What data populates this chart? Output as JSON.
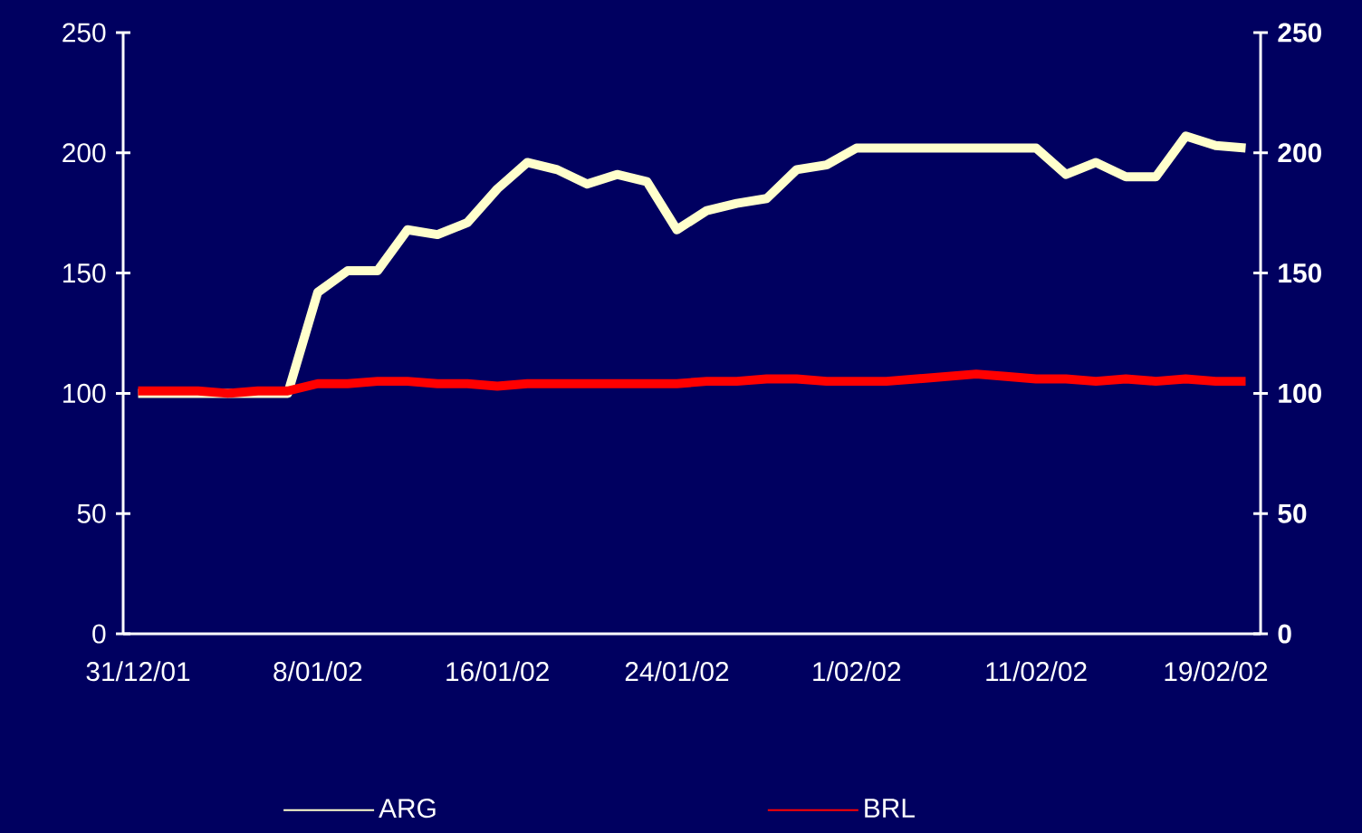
{
  "chart_data": {
    "type": "line",
    "categories": [
      "31/12/01",
      null,
      null,
      null,
      null,
      null,
      "8/01/02",
      null,
      null,
      null,
      null,
      null,
      "16/01/02",
      null,
      null,
      null,
      null,
      null,
      "24/01/02",
      null,
      null,
      null,
      null,
      null,
      "1/02/02",
      null,
      null,
      null,
      null,
      null,
      "11/02/02",
      null,
      null,
      null,
      null,
      null,
      "19/02/02",
      null
    ],
    "series": [
      {
        "name": "ARG",
        "color": "#ffffcc",
        "values": [
          100,
          100,
          100,
          100,
          100,
          100,
          142,
          151,
          151,
          168,
          166,
          171,
          185,
          196,
          193,
          187,
          191,
          188,
          168,
          176,
          179,
          181,
          193,
          195,
          202,
          202,
          202,
          202,
          202,
          202,
          202,
          191,
          196,
          190,
          190,
          207,
          203,
          202
        ]
      },
      {
        "name": "BRL",
        "color": "#ff0000",
        "values": [
          101,
          101,
          101,
          100,
          101,
          101,
          104,
          104,
          105,
          105,
          104,
          104,
          103,
          104,
          104,
          104,
          104,
          104,
          104,
          105,
          105,
          106,
          106,
          105,
          105,
          105,
          106,
          107,
          108,
          107,
          106,
          106,
          105,
          106,
          105,
          106,
          105,
          105
        ]
      }
    ],
    "ylim": [
      0,
      250
    ],
    "yticks": [
      0,
      50,
      100,
      150,
      200,
      250
    ],
    "y2lim": [
      0,
      250
    ],
    "y2ticks": [
      0,
      50,
      100,
      150,
      200,
      250
    ],
    "grid": false,
    "legend": "bottom",
    "marker": "none",
    "line_style": "solid"
  }
}
